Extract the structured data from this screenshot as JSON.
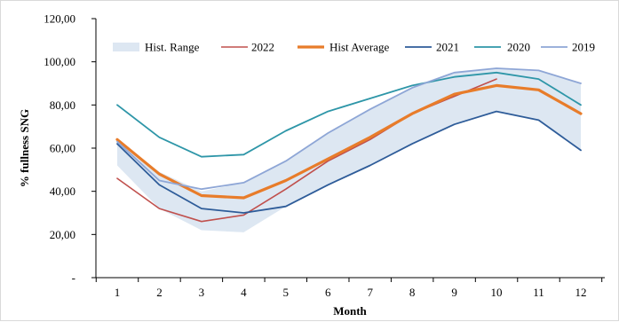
{
  "chart_data": {
    "type": "line",
    "xlabel": "Month",
    "ylabel": "% fullness SNG",
    "x": [
      1,
      2,
      3,
      4,
      5,
      6,
      7,
      8,
      9,
      10,
      11,
      12
    ],
    "x_tick_labels": [
      "1",
      "2",
      "3",
      "4",
      "5",
      "6",
      "7",
      "8",
      "9",
      "10",
      "11",
      "12"
    ],
    "ylim": [
      0,
      120
    ],
    "y_ticks": [
      0,
      20,
      40,
      60,
      80,
      100,
      120
    ],
    "y_tick_labels": [
      "-",
      "20,00",
      "40,00",
      "60,00",
      "80,00",
      "100,00",
      "120,00"
    ],
    "grid": false,
    "legend_placement": "top",
    "hist_range": {
      "name": "Hist. Range",
      "color": "#dde7f2",
      "upper": [
        64,
        49,
        40,
        44,
        54,
        67,
        78,
        88,
        95,
        97,
        96,
        90
      ],
      "lower": [
        52,
        32,
        22,
        21,
        33,
        43,
        52,
        62,
        71,
        77,
        73,
        59
      ]
    },
    "series": [
      {
        "name": "2022",
        "color": "#c0504d",
        "width": 1.6,
        "values": [
          46,
          32,
          26,
          29,
          41,
          54,
          64,
          76,
          84,
          92,
          null,
          null
        ]
      },
      {
        "name": "Hist Average",
        "color": "#e87c2a",
        "width": 3.2,
        "values": [
          64,
          48,
          38,
          37,
          45,
          55,
          65,
          76,
          85,
          89,
          87,
          76
        ]
      },
      {
        "name": "2021",
        "color": "#2e5c99",
        "width": 1.8,
        "values": [
          62,
          43,
          32,
          30,
          33,
          43,
          52,
          62,
          71,
          77,
          73,
          59
        ]
      },
      {
        "name": "2020",
        "color": "#2e96a8",
        "width": 1.8,
        "values": [
          80,
          65,
          56,
          57,
          68,
          77,
          83,
          89,
          93,
          95,
          92,
          80
        ]
      },
      {
        "name": "2019",
        "color": "#8ea6d6",
        "width": 1.8,
        "values": [
          63,
          45,
          41,
          44,
          54,
          67,
          78,
          88,
          95,
          97,
          96,
          90
        ]
      }
    ],
    "legend_order": [
      "Hist. Range",
      "2022",
      "Hist Average",
      "2021",
      "2020",
      "2019"
    ]
  }
}
